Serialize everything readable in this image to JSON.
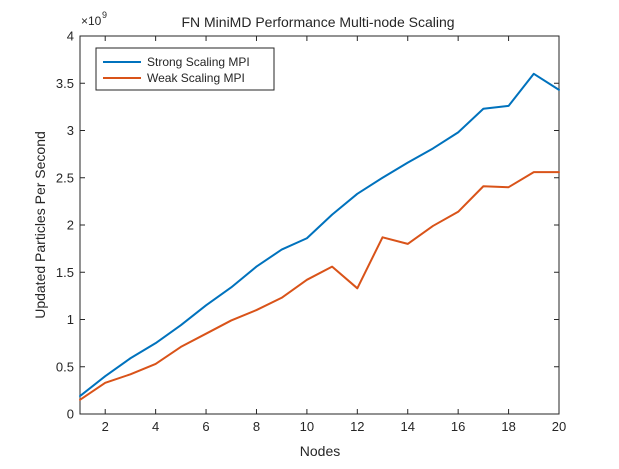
{
  "chart_data": {
    "type": "line",
    "title": "FN MiniMD Performance Multi-node Scaling",
    "xlabel": "Nodes",
    "ylabel": "Updated Particles Per Second",
    "y_multiplier_label": "×10",
    "y_multiplier_exponent": "9",
    "xlim": [
      1,
      20
    ],
    "ylim": [
      0,
      4
    ],
    "x_ticks": [
      "2",
      "4",
      "6",
      "8",
      "10",
      "12",
      "14",
      "16",
      "18",
      "20"
    ],
    "y_ticks": [
      "0",
      "0.5",
      "1",
      "1.5",
      "2",
      "2.5",
      "3",
      "3.5",
      "4"
    ],
    "grid": false,
    "legend_position": "top-left",
    "x": [
      1,
      2,
      3,
      4,
      5,
      6,
      7,
      8,
      9,
      10,
      11,
      12,
      13,
      14,
      15,
      16,
      17,
      18,
      19,
      20
    ],
    "series": [
      {
        "name": "Strong Scaling MPI",
        "color": "#0072BD",
        "values": [
          0.19,
          0.4,
          0.59,
          0.75,
          0.94,
          1.15,
          1.34,
          1.56,
          1.74,
          1.86,
          2.11,
          2.33,
          2.5,
          2.66,
          2.81,
          2.98,
          3.23,
          3.26,
          3.6,
          3.43
        ]
      },
      {
        "name": "Weak Scaling MPI",
        "color": "#D95319",
        "values": [
          0.15,
          0.33,
          0.42,
          0.53,
          0.71,
          0.85,
          0.99,
          1.1,
          1.23,
          1.42,
          1.56,
          1.33,
          1.87,
          1.8,
          1.99,
          2.14,
          2.41,
          2.4,
          2.56,
          2.56
        ]
      }
    ]
  }
}
